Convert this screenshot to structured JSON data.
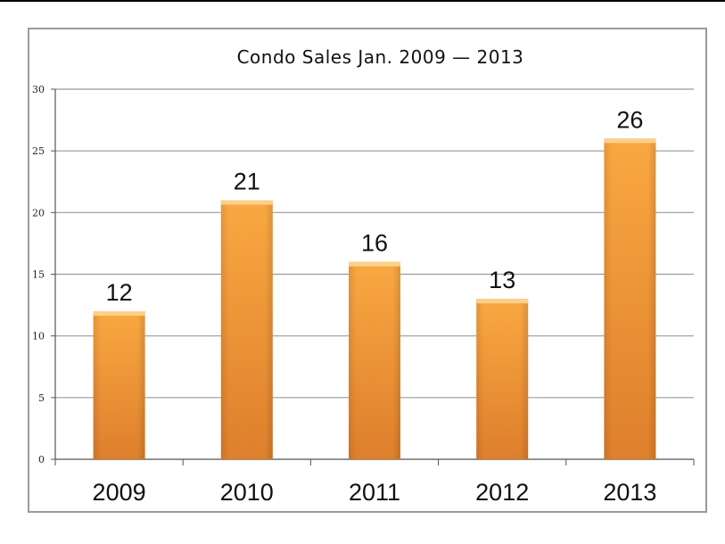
{
  "chart_data": {
    "type": "bar",
    "title": "Condo Sales Jan. 2009 — 2013",
    "categories": [
      "2009",
      "2010",
      "2011",
      "2012",
      "2013"
    ],
    "values": [
      12,
      21,
      16,
      13,
      26
    ],
    "ylim": [
      0,
      30
    ],
    "yticks": [
      0,
      5,
      10,
      15,
      20,
      25,
      30
    ],
    "grid": true,
    "data_labels": true,
    "colors": {
      "bar_top": "#f9a842",
      "bar_bottom": "#de7f2c",
      "bar_cap": "#fcd089",
      "grid": "#9a9a9a"
    }
  }
}
